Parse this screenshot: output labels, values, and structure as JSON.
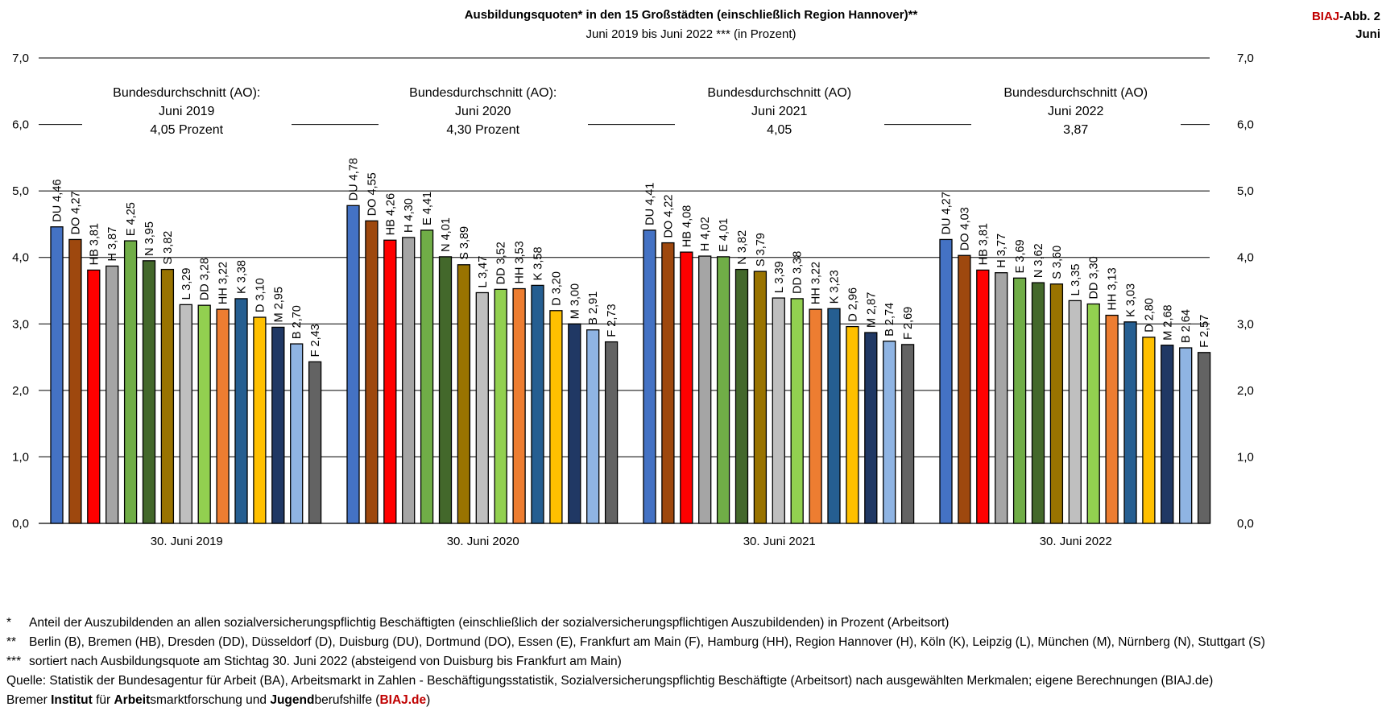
{
  "header": {
    "title": "Ausbildungsquoten* in den 15 Großstädten (einschließlich Region Hannover)**",
    "subtitle": "Juni 2019 bis Juni 2022 *** (in Prozent)",
    "brand_red": "BIAJ",
    "brand_rest": "-Abb. 2",
    "brand_line2": "Juni"
  },
  "chart_data": {
    "type": "bar",
    "y_axis": {
      "ylim": [
        0,
        7
      ],
      "tick_labels": [
        "0,0",
        "1,0",
        "2,0",
        "3,0",
        "4,0",
        "5,0",
        "6,0",
        "7,0"
      ],
      "grid": true
    },
    "city_colors": {
      "DU": "#4472c4",
      "DO": "#9e480e",
      "HB": "#ff0000",
      "H": "#a5a5a5",
      "E": "#70ad47",
      "N": "#43682b",
      "S": "#997300",
      "L": "#bfbfbf",
      "DD": "#92d050",
      "HH": "#ed7d31",
      "K": "#255e91",
      "D": "#ffc000",
      "M": "#203864",
      "B": "#8fb4e3",
      "F": "#636363"
    },
    "groups": [
      {
        "label": "30. Juni 2019",
        "average": [
          "Bundesdurchschnitt (AO):",
          "Juni 2019",
          "4,05   Prozent"
        ],
        "bars": [
          {
            "city": "DU",
            "value": 4.46,
            "label": "DU  4,46"
          },
          {
            "city": "DO",
            "value": 4.27,
            "label": "DO 4,27"
          },
          {
            "city": "HB",
            "value": 3.81,
            "label": "HB 3,81"
          },
          {
            "city": "H",
            "value": 3.87,
            "label": "H 3,87"
          },
          {
            "city": "E",
            "value": 4.25,
            "label": "E 4,25"
          },
          {
            "city": "N",
            "value": 3.95,
            "label": "N 3,95"
          },
          {
            "city": "S",
            "value": 3.82,
            "label": "S 3,82"
          },
          {
            "city": "L",
            "value": 3.29,
            "label": "L 3,29"
          },
          {
            "city": "DD",
            "value": 3.28,
            "label": "DD 3,28"
          },
          {
            "city": "HH",
            "value": 3.22,
            "label": "HH 3,22"
          },
          {
            "city": "K",
            "value": 3.38,
            "label": "K 3,38"
          },
          {
            "city": "D",
            "value": 3.1,
            "label": "D 3,10"
          },
          {
            "city": "M",
            "value": 2.95,
            "label": "M 2,95"
          },
          {
            "city": "B",
            "value": 2.7,
            "label": "B 2,70"
          },
          {
            "city": "F",
            "value": 2.43,
            "label": "F 2,43"
          }
        ]
      },
      {
        "label": "30. Juni 2020",
        "average": [
          "Bundesdurchschnitt (AO):",
          "Juni 2020",
          "4,30   Prozent"
        ],
        "bars": [
          {
            "city": "DU",
            "value": 4.78,
            "label": "DU  4,78"
          },
          {
            "city": "DO",
            "value": 4.55,
            "label": "DO 4,55"
          },
          {
            "city": "HB",
            "value": 4.26,
            "label": "HB 4,26"
          },
          {
            "city": "H",
            "value": 4.3,
            "label": "H 4,30"
          },
          {
            "city": "E",
            "value": 4.41,
            "label": "E 4,41"
          },
          {
            "city": "N",
            "value": 4.01,
            "label": "N 4,01"
          },
          {
            "city": "S",
            "value": 3.89,
            "label": "S 3,89"
          },
          {
            "city": "L",
            "value": 3.47,
            "label": "L 3,47"
          },
          {
            "city": "DD",
            "value": 3.52,
            "label": "DD 3,52"
          },
          {
            "city": "HH",
            "value": 3.53,
            "label": "HH 3,53"
          },
          {
            "city": "K",
            "value": 3.58,
            "label": "K 3,58"
          },
          {
            "city": "D",
            "value": 3.2,
            "label": "D 3,20"
          },
          {
            "city": "M",
            "value": 3.0,
            "label": "M 3,00"
          },
          {
            "city": "B",
            "value": 2.91,
            "label": "B 2,91"
          },
          {
            "city": "F",
            "value": 2.73,
            "label": "F 2,73"
          }
        ]
      },
      {
        "label": "30. Juni 2021",
        "average": [
          "Bundesdurchschnitt (AO)",
          "Juni 2021",
          "4,05"
        ],
        "bars": [
          {
            "city": "DU",
            "value": 4.41,
            "label": "DU  4,41"
          },
          {
            "city": "DO",
            "value": 4.22,
            "label": "DO 4,22"
          },
          {
            "city": "HB",
            "value": 4.08,
            "label": "HB 4,08"
          },
          {
            "city": "H",
            "value": 4.02,
            "label": "H 4,02"
          },
          {
            "city": "E",
            "value": 4.01,
            "label": "E 4,01"
          },
          {
            "city": "N",
            "value": 3.82,
            "label": "N 3,82"
          },
          {
            "city": "S",
            "value": 3.79,
            "label": "S 3,79"
          },
          {
            "city": "L",
            "value": 3.39,
            "label": "L 3,39"
          },
          {
            "city": "DD",
            "value": 3.38,
            "label": "DD 3,38"
          },
          {
            "city": "HH",
            "value": 3.22,
            "label": "HH 3,22"
          },
          {
            "city": "K",
            "value": 3.23,
            "label": "K 3,23"
          },
          {
            "city": "D",
            "value": 2.96,
            "label": "D 2,96"
          },
          {
            "city": "M",
            "value": 2.87,
            "label": "M 2,87"
          },
          {
            "city": "B",
            "value": 2.74,
            "label": "B 2,74"
          },
          {
            "city": "F",
            "value": 2.69,
            "label": "F 2,69"
          }
        ]
      },
      {
        "label": "30. Juni 2022",
        "average": [
          "Bundesdurchschnitt (AO)",
          "Juni 2022",
          "3,87"
        ],
        "bars": [
          {
            "city": "DU",
            "value": 4.27,
            "label": "DU  4,27"
          },
          {
            "city": "DO",
            "value": 4.03,
            "label": "DO 4,03"
          },
          {
            "city": "HB",
            "value": 3.81,
            "label": "HB 3,81"
          },
          {
            "city": "H",
            "value": 3.77,
            "label": "H 3,77"
          },
          {
            "city": "E",
            "value": 3.69,
            "label": "E 3,69"
          },
          {
            "city": "N",
            "value": 3.62,
            "label": "N 3,62"
          },
          {
            "city": "S",
            "value": 3.6,
            "label": "S 3,60"
          },
          {
            "city": "L",
            "value": 3.35,
            "label": "L 3,35"
          },
          {
            "city": "DD",
            "value": 3.3,
            "label": "DD 3,30"
          },
          {
            "city": "HH",
            "value": 3.13,
            "label": "HH 3,13"
          },
          {
            "city": "K",
            "value": 3.03,
            "label": "K 3,03"
          },
          {
            "city": "D",
            "value": 2.8,
            "label": "D 2,80"
          },
          {
            "city": "M",
            "value": 2.68,
            "label": "M 2,68"
          },
          {
            "city": "B",
            "value": 2.64,
            "label": "B 2,64"
          },
          {
            "city": "F",
            "value": 2.57,
            "label": "F 2,57"
          }
        ]
      }
    ]
  },
  "footnotes": {
    "note1_mark": "*",
    "note1_text": "Anteil der Auszubildenden an allen sozialversicherungspflichtig Beschäftigten (einschließlich der sozialversicherungspflichtigen Auszubildenden) in Prozent (Arbeitsort)",
    "note2_mark": "**",
    "note2_text": "Berlin (B), Bremen (HB), Dresden (DD), Düsseldorf (D), Duisburg (DU), Dortmund (DO), Essen (E), Frankfurt am Main (F), Hamburg (HH), Region Hannover (H), Köln (K), Leipzig (L), München (M), Nürnberg (N), Stuttgart (S)",
    "note3_mark": "***",
    "note3_text": "sortiert nach Ausbildungsquote am Stichtag 30. Juni 2022 (absteigend von Duisburg bis Frankfurt am Main)",
    "source": "Quelle: Statistik der Bundesagentur für Arbeit (BA), Arbeitsmarkt in Zahlen - Beschäftigungsstatistik, Sozialversicherungspflichtig Beschäftigte (Arbeitsort) nach ausgewählten Merkmalen; eigene Berechnungen (BIAJ.de)",
    "inst_1": "Bremer ",
    "inst_2": "Institut",
    "inst_3": " für ",
    "inst_4": "Arbeit",
    "inst_5": "smarktforschung und ",
    "inst_6": "Jugend",
    "inst_7": "berufshilfe (",
    "inst_8": "BIAJ.de",
    "inst_9": ")"
  }
}
